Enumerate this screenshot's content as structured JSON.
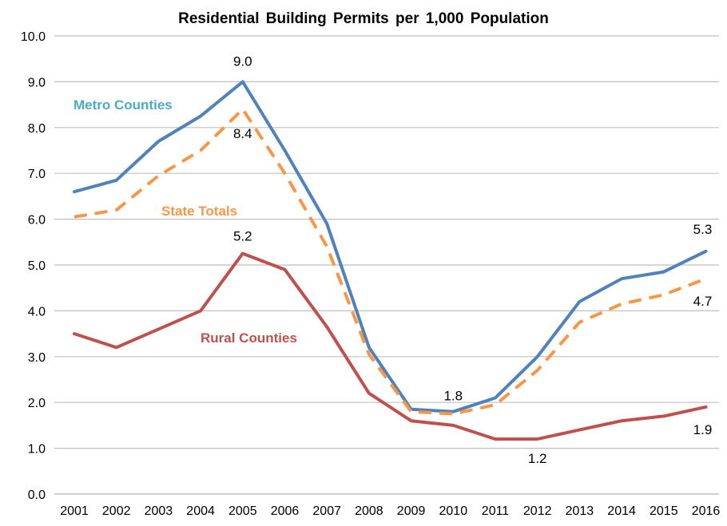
{
  "chart_data": {
    "type": "line",
    "title": "Residential  Building  Permits  per  1,000  Population",
    "xlabel": "",
    "ylabel": "",
    "ylim": [
      0,
      10
    ],
    "yticks": [
      "0.0",
      "1.0",
      "2.0",
      "3.0",
      "4.0",
      "5.0",
      "6.0",
      "7.0",
      "8.0",
      "9.0",
      "10.0"
    ],
    "grid": true,
    "categories": [
      "2001",
      "2002",
      "2003",
      "2004",
      "2005",
      "2006",
      "2007",
      "2008",
      "2009",
      "2010",
      "2011",
      "2012",
      "2013",
      "2014",
      "2015",
      "2016"
    ],
    "series": [
      {
        "name": "Metro Counties",
        "color": "#4f81bd",
        "dash": false,
        "values": [
          6.6,
          6.85,
          7.7,
          8.25,
          9.0,
          7.5,
          5.9,
          3.2,
          1.85,
          1.8,
          2.1,
          3.0,
          4.2,
          4.7,
          4.85,
          5.3
        ]
      },
      {
        "name": "State Totals",
        "color": "#f79646",
        "dash": true,
        "values": [
          6.05,
          6.2,
          6.95,
          7.5,
          8.4,
          7.0,
          5.4,
          3.05,
          1.8,
          1.75,
          1.95,
          2.7,
          3.75,
          4.15,
          4.35,
          4.7
        ]
      },
      {
        "name": "Rural Counties",
        "color": "#c0504d",
        "dash": false,
        "values": [
          3.5,
          3.2,
          3.6,
          4.0,
          5.25,
          4.9,
          3.65,
          2.2,
          1.6,
          1.5,
          1.2,
          1.2,
          1.4,
          1.6,
          1.7,
          1.9
        ]
      }
    ],
    "series_labels": [
      {
        "text": "Metro Counties",
        "color": "#4bacc6"
      },
      {
        "text": "State Totals",
        "color": "#f79646"
      },
      {
        "text": "Rural Counties",
        "color": "#c0504d"
      }
    ],
    "annotations": [
      {
        "text": "9.0",
        "series": 0,
        "index": 4
      },
      {
        "text": "8.4",
        "series": 1,
        "index": 4
      },
      {
        "text": "5.2",
        "series": 2,
        "index": 4
      },
      {
        "text": "1.8",
        "series": 0,
        "index": 9
      },
      {
        "text": "1.2",
        "series": 2,
        "index": 11
      },
      {
        "text": "5.3",
        "series": 0,
        "index": 15
      },
      {
        "text": "4.7",
        "series": 1,
        "index": 15
      },
      {
        "text": "1.9",
        "series": 2,
        "index": 15
      }
    ]
  }
}
